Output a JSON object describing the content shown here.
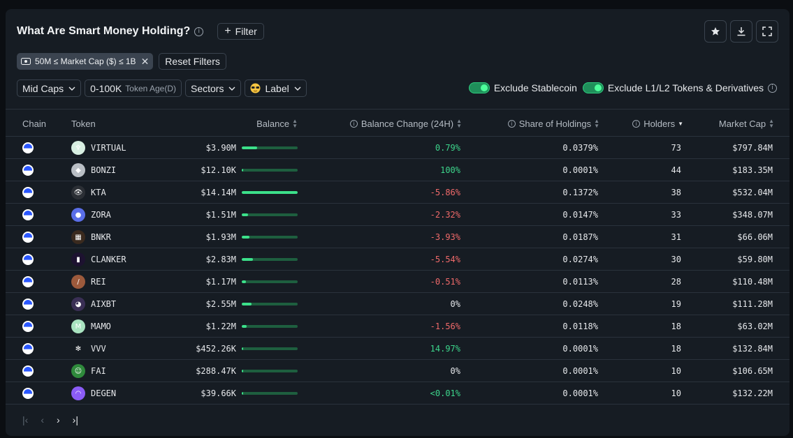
{
  "header": {
    "title": "What Are Smart Money Holding?",
    "filter_label": "Filter"
  },
  "chips": {
    "active_filter": "50M ≤ Market Cap ($) ≤ 1B",
    "reset_label": "Reset Filters"
  },
  "dropdowns": {
    "caps": "Mid Caps",
    "token_age_value": "0-100K",
    "token_age_label": "Token Age(D)",
    "sectors": "Sectors",
    "label": "Label"
  },
  "toggles": {
    "stablecoin": "Exclude Stablecoin",
    "l1l2": "Exclude L1/L2 Tokens & Derivatives"
  },
  "table": {
    "headers": {
      "chain": "Chain",
      "token": "Token",
      "balance": "Balance",
      "balance_change": "Balance Change (24H)",
      "share": "Share of Holdings",
      "holders": "Holders",
      "market_cap": "Market Cap"
    },
    "rows": [
      {
        "token": "VIRTUAL",
        "balance": "$3.90M",
        "bar": 0.28,
        "change": "0.79%",
        "dir": "pos",
        "share": "0.0379%",
        "holders": "73",
        "mcap": "$797.84M",
        "icon_color": "#d8efe2",
        "glyph": "♆"
      },
      {
        "token": "BONZI",
        "balance": "$12.10K",
        "bar": 0.0,
        "change": "100%",
        "dir": "pos",
        "share": "0.0001%",
        "holders": "44",
        "mcap": "$183.35M",
        "icon_color": "#b9bec4",
        "glyph": "◆"
      },
      {
        "token": "KTA",
        "balance": "$14.14M",
        "bar": 1.0,
        "change": "-5.86%",
        "dir": "neg",
        "share": "0.1372%",
        "holders": "38",
        "mcap": "$532.04M",
        "icon_color": "#2b2f35",
        "glyph": "👁"
      },
      {
        "token": "ZORA",
        "balance": "$1.51M",
        "bar": 0.11,
        "change": "-2.32%",
        "dir": "neg",
        "share": "0.0147%",
        "holders": "33",
        "mcap": "$348.07M",
        "icon_color": "#5a6ee8",
        "glyph": "●"
      },
      {
        "token": "BNKR",
        "balance": "$1.93M",
        "bar": 0.14,
        "change": "-3.93%",
        "dir": "neg",
        "share": "0.0187%",
        "holders": "31",
        "mcap": "$66.06M",
        "icon_color": "#3a2a1e",
        "glyph": "▦"
      },
      {
        "token": "CLANKER",
        "balance": "$2.83M",
        "bar": 0.2,
        "change": "-5.54%",
        "dir": "neg",
        "share": "0.0274%",
        "holders": "30",
        "mcap": "$59.80M",
        "icon_color": "#1d1230",
        "glyph": "▮"
      },
      {
        "token": "REI",
        "balance": "$1.17M",
        "bar": 0.08,
        "change": "-0.51%",
        "dir": "neg",
        "share": "0.0113%",
        "holders": "28",
        "mcap": "$110.48M",
        "icon_color": "#9c5a3c",
        "glyph": "/"
      },
      {
        "token": "AIXBT",
        "balance": "$2.55M",
        "bar": 0.18,
        "change": "0%",
        "dir": "neutral",
        "share": "0.0248%",
        "holders": "19",
        "mcap": "$111.28M",
        "icon_color": "#3a2f55",
        "glyph": "◕"
      },
      {
        "token": "MAMO",
        "balance": "$1.22M",
        "bar": 0.09,
        "change": "-1.56%",
        "dir": "neg",
        "share": "0.0118%",
        "holders": "18",
        "mcap": "$63.02M",
        "icon_color": "#a9e3c0",
        "glyph": "M"
      },
      {
        "token": "VVV",
        "balance": "$452.26K",
        "bar": 0.03,
        "change": "14.97%",
        "dir": "pos",
        "share": "0.0001%",
        "holders": "18",
        "mcap": "$132.84M",
        "icon_color": "#161c23",
        "glyph": "✻"
      },
      {
        "token": "FAI",
        "balance": "$288.47K",
        "bar": 0.02,
        "change": "0%",
        "dir": "neutral",
        "share": "0.0001%",
        "holders": "10",
        "mcap": "$106.65M",
        "icon_color": "#2f8a3c",
        "glyph": "☺"
      },
      {
        "token": "DEGEN",
        "balance": "$39.66K",
        "bar": 0.01,
        "change": "<0.01%",
        "dir": "pos",
        "share": "0.0001%",
        "holders": "10",
        "mcap": "$132.22M",
        "icon_color": "#8b5cf6",
        "glyph": "◠"
      }
    ]
  },
  "pager": {
    "first": "|‹",
    "prev": "‹",
    "next": "›",
    "last": "›|"
  }
}
